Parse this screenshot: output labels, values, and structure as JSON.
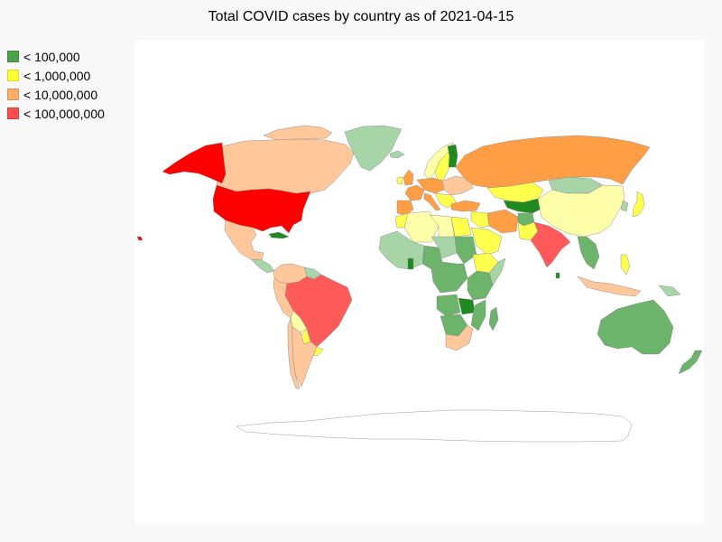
{
  "title": "Total COVID cases by country as of 2021-04-15",
  "legend": {
    "items": [
      {
        "label": "< 100,000",
        "color": "#4ba34b"
      },
      {
        "label": "< 1,000,000",
        "color": "#ffff33"
      },
      {
        "label": "< 10,000,000",
        "color": "#ffad66"
      },
      {
        "label": "< 100,000,000",
        "color": "#ff4d4d"
      }
    ]
  },
  "colors": {
    "tier1_dark": "#1f8a1f",
    "tier1_mid": "#6cb36c",
    "tier1_light": "#a8d5a8",
    "tier2": "#ffff4d",
    "tier2_light": "#ffffaa",
    "tier3": "#ff9e44",
    "tier3_light": "#ffc79a",
    "tier4": "#ff5a5a",
    "tier4_strong": "#ff0000",
    "no_data": "#ffffff"
  }
}
